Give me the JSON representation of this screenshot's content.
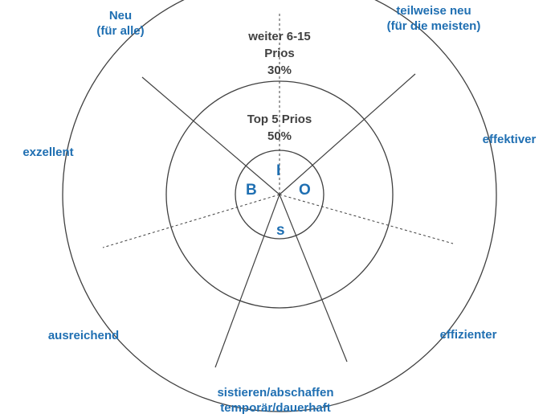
{
  "colors": {
    "line": "#404040",
    "label": "#1f6fb2",
    "text": "#404040"
  },
  "rings": {
    "outer": {
      "line1": "weiter 6-15",
      "line2": "Prios",
      "line3": "30%"
    },
    "inner": {
      "line1": "Top 5 Prios",
      "line2": "50%"
    }
  },
  "center_letters": {
    "top": "I",
    "left": "B",
    "right": "O",
    "bottom": "S"
  },
  "labels": {
    "neu": {
      "line1": "Neu",
      "line2": "(für alle)"
    },
    "teilweise": {
      "line1": "teilweise neu",
      "line2": "(für die meisten)"
    },
    "effektiver": "effektiver",
    "exzellent": "exzellent",
    "ausreichend": "ausreichend",
    "effizienter": "effizienter",
    "sistieren": {
      "line1": "sistieren/abschaffen",
      "line2": "temporär/dauerhaft"
    }
  }
}
